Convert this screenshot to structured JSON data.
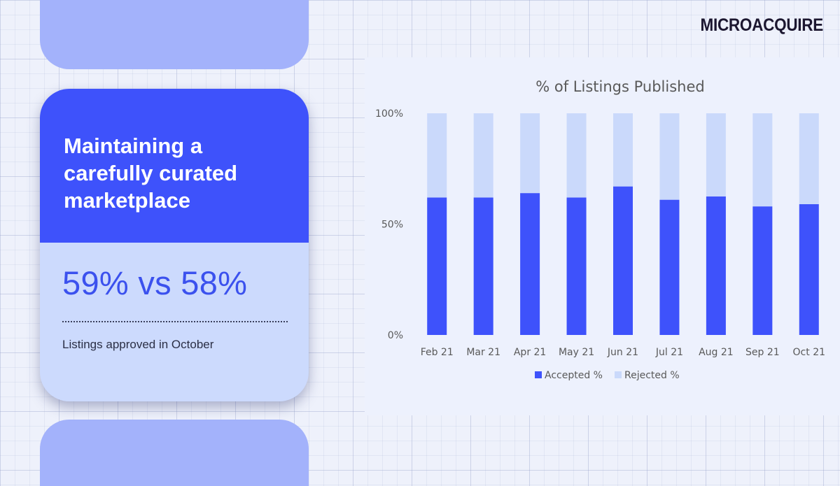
{
  "brand": {
    "logo_text": "MICROACQUIRE"
  },
  "card": {
    "title": "Maintaining a\ncarefully curated\nmarketplace",
    "stat": "59% vs 58%",
    "caption": "Listings approved in October"
  },
  "colors": {
    "accent": "#3e52fb",
    "light": "#ccdafd",
    "pill": "#a3b2fb",
    "accepted": "#3e52fb",
    "rejected": "#cad9fb"
  },
  "chart_data": {
    "type": "bar",
    "stacked": true,
    "title": "% of Listings Published",
    "categories": [
      "Feb 21",
      "Mar 21",
      "Apr 21",
      "May 21",
      "Jun 21",
      "Jul 21",
      "Aug 21",
      "Sep 21",
      "Oct 21"
    ],
    "series": [
      {
        "name": "Accepted %",
        "color": "#3e52fb",
        "values": [
          62,
          62,
          64,
          62,
          67,
          61,
          62.5,
          58,
          59
        ]
      },
      {
        "name": "Rejected %",
        "color": "#cad9fb",
        "values": [
          38,
          38,
          36,
          38,
          33,
          39,
          37.5,
          42,
          41
        ]
      }
    ],
    "ylim": [
      0,
      100
    ],
    "yticks": [
      0,
      50,
      100
    ],
    "ytick_labels": [
      "0%",
      "50%",
      "100%"
    ],
    "xlabel": "",
    "ylabel": "",
    "legend_position": "bottom",
    "grid": false
  }
}
